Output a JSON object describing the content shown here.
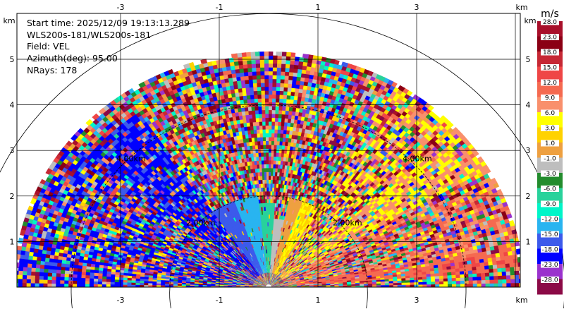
{
  "info": {
    "start_time": "Start time: 2025/12/09 19:13:13.289",
    "instrument": "WLS200s-181/WLS200s-181",
    "field": "Field: VEL",
    "azimuth": "Azimuth(deg): 95.00",
    "nrays": "NRays: 178"
  },
  "chart_data": {
    "type": "heatmap",
    "subtype": "RHI velocity scan (range-height section, half-disc)",
    "x_axis": {
      "unit": "km",
      "range": [
        -5.4,
        5.4
      ],
      "ticks": [
        -3,
        -1,
        1,
        3
      ],
      "tick_labels": [
        "-3",
        "-1",
        "1",
        "3"
      ],
      "tick_positions": "top and bottom"
    },
    "y_axis": {
      "unit": "km",
      "range": [
        0,
        5.2
      ],
      "ticks": [
        1,
        2,
        3,
        4,
        5
      ],
      "tick_labels": [
        "1",
        "2",
        "3",
        "4",
        "5"
      ],
      "tick_positions": "left and right"
    },
    "range_rings_km": [
      2,
      4,
      6
    ],
    "range_ring_labels": [
      {
        "text": "2.00km",
        "side": "left"
      },
      {
        "text": "2.00km",
        "side": "right"
      },
      {
        "text": "4.00km",
        "side": "left"
      },
      {
        "text": "4.00km",
        "side": "right"
      }
    ],
    "max_range_km": 5.1,
    "grid": true,
    "colorbar": {
      "unit": "m/s",
      "placement": "right",
      "levels": [
        {
          "label": "28.0",
          "color": "#a8102a"
        },
        {
          "label": "23.0",
          "color": "#8b0014"
        },
        {
          "label": "18.0",
          "color": "#c62834"
        },
        {
          "label": "15.0",
          "color": "#ef4646"
        },
        {
          "label": "12.0",
          "color": "#f56a50"
        },
        {
          "label": "9.0",
          "color": "#f9906c"
        },
        {
          "label": "6.0",
          "color": "#ffff00"
        },
        {
          "label": "3.0",
          "color": "#ffd200"
        },
        {
          "label": "1.0",
          "color": "#eea040"
        },
        {
          "label": "-1.0",
          "color": "#bebebe"
        },
        {
          "label": "-3.0",
          "color": "#238c2d"
        },
        {
          "label": "-6.0",
          "color": "#28d29b"
        },
        {
          "label": "-9.0",
          "color": "#00f5c8"
        },
        {
          "label": "-12.0",
          "color": "#29b4f0"
        },
        {
          "label": "-15.0",
          "color": "#3c5aeb"
        },
        {
          "label": "-18.0",
          "color": "#0000ff"
        },
        {
          "label": "-23.0",
          "color": "#9a32cd"
        },
        {
          "label": "-28.0",
          "color": "#8b0a46"
        }
      ]
    },
    "sectors": [
      {
        "elev_deg": [
          0,
          4
        ],
        "range_km": [
          0,
          5.0
        ],
        "pattern": "noise"
      },
      {
        "elev_deg": [
          4,
          10
        ],
        "range_km": [
          0.3,
          5.0
        ],
        "pattern": "mostly",
        "value_ms": 14
      },
      {
        "elev_deg": [
          10,
          30
        ],
        "range_km": [
          0.3,
          5.1
        ],
        "pattern": "mixed",
        "value_ms": 12
      },
      {
        "elev_deg": [
          30,
          42
        ],
        "range_km": [
          0.3,
          5.2
        ],
        "pattern": "mostly",
        "value_ms": 9
      },
      {
        "elev_deg": [
          42,
          60
        ],
        "range_km": [
          0.3,
          5.1
        ],
        "pattern": "mixed",
        "value_ms": 9
      },
      {
        "elev_deg": [
          60,
          70
        ],
        "range_km": [
          0.3,
          2.0
        ],
        "pattern": "solid",
        "value_ms": 6
      },
      {
        "elev_deg": [
          70,
          78
        ],
        "range_km": [
          0.3,
          2.0
        ],
        "pattern": "solid",
        "value_ms": 2
      },
      {
        "elev_deg": [
          78,
          86
        ],
        "range_km": [
          0.3,
          1.5
        ],
        "pattern": "solid",
        "value_ms": 0
      },
      {
        "elev_deg": [
          86,
          96
        ],
        "range_km": [
          0.3,
          1.8
        ],
        "pattern": "solid",
        "value_ms": -4
      },
      {
        "elev_deg": [
          96,
          110
        ],
        "range_km": [
          0.3,
          2.0
        ],
        "pattern": "solid",
        "value_ms": -10
      },
      {
        "elev_deg": [
          110,
          124
        ],
        "range_km": [
          0.3,
          2.0
        ],
        "pattern": "solid",
        "value_ms": -13
      },
      {
        "elev_deg": [
          124,
          142
        ],
        "range_km": [
          0.3,
          4.6
        ],
        "pattern": "mostly",
        "value_ms": -16
      },
      {
        "elev_deg": [
          142,
          162
        ],
        "range_km": [
          0.3,
          5.0
        ],
        "pattern": "mixed",
        "value_ms": -16
      },
      {
        "elev_deg": [
          162,
          180
        ],
        "range_km": [
          0.3,
          5.0
        ],
        "pattern": "mixed",
        "value_ms": -16
      }
    ]
  }
}
